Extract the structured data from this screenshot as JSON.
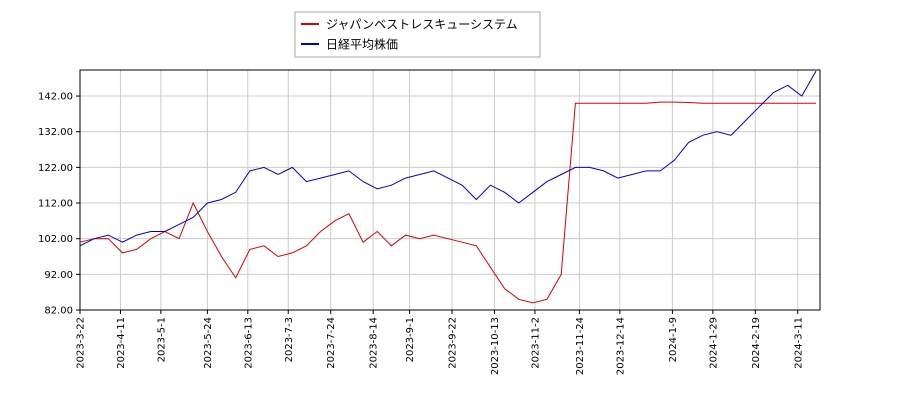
{
  "chart_data": {
    "type": "line",
    "x": [
      "2023-3-22",
      "2023-3-29",
      "2023-4-5",
      "2023-4-12",
      "2023-4-19",
      "2023-4-26",
      "2023-5-3",
      "2023-5-10",
      "2023-5-17",
      "2023-5-24",
      "2023-5-31",
      "2023-6-7",
      "2023-6-14",
      "2023-6-21",
      "2023-6-28",
      "2023-7-5",
      "2023-7-12",
      "2023-7-19",
      "2023-7-26",
      "2023-8-2",
      "2023-8-9",
      "2023-8-16",
      "2023-8-23",
      "2023-8-30",
      "2023-9-6",
      "2023-9-13",
      "2023-9-20",
      "2023-9-27",
      "2023-10-4",
      "2023-10-11",
      "2023-10-18",
      "2023-10-25",
      "2023-11-1",
      "2023-11-8",
      "2023-11-15",
      "2023-11-22",
      "2023-11-29",
      "2023-12-6",
      "2023-12-13",
      "2023-12-20",
      "2023-12-27",
      "2024-1-3",
      "2024-1-10",
      "2024-1-17",
      "2024-1-24",
      "2024-1-31",
      "2024-2-7",
      "2024-2-14",
      "2024-2-21",
      "2024-2-28",
      "2024-3-6",
      "2024-3-13",
      "2024-3-20"
    ],
    "series": [
      {
        "name": "ジャパンベストレスキューシステム",
        "color": "#dd0000",
        "values": [
          101,
          102,
          102,
          98,
          99,
          102,
          104,
          102,
          112,
          104,
          97,
          91,
          99,
          100,
          97,
          98,
          100,
          104,
          107,
          109,
          101,
          104,
          100,
          103,
          102,
          103,
          102,
          101,
          100,
          94,
          88,
          85,
          84,
          85,
          92,
          140,
          140,
          140,
          140,
          140,
          140,
          140.3,
          140.3,
          140.2,
          140,
          140,
          140,
          140,
          140,
          140,
          140,
          140,
          140
        ]
      },
      {
        "name": "日経平均株価",
        "color": "#0000cc",
        "values": [
          100,
          102,
          103,
          101,
          103,
          104,
          104,
          106,
          108,
          112,
          113,
          115,
          121,
          122,
          120,
          122,
          118,
          119,
          120,
          121,
          118,
          116,
          117,
          119,
          120,
          121,
          119,
          117,
          113,
          117,
          115,
          112,
          115,
          118,
          120,
          122,
          122,
          121,
          119,
          120,
          121,
          121,
          124,
          129,
          131,
          132,
          131,
          135,
          139,
          143,
          145,
          142,
          149
        ]
      }
    ],
    "xlim": [
      "2023-3-22",
      "2024-3-22"
    ],
    "xticks": [
      "2023-3-22",
      "2023-4-11",
      "2023-5-1",
      "2023-5-24",
      "2023-6-13",
      "2023-7-3",
      "2023-7-24",
      "2023-8-14",
      "2023-9-1",
      "2023-9-22",
      "2023-10-13",
      "2023-11-2",
      "2023-11-24",
      "2023-12-14",
      "2024-1-9",
      "2024-1-29",
      "2024-2-19",
      "2024-3-11"
    ],
    "ylim": [
      82,
      149.3
    ],
    "yticks": [
      {
        "value": 82,
        "label": "82.00"
      },
      {
        "value": 92,
        "label": "92.00"
      },
      {
        "value": 102,
        "label": "102.00"
      },
      {
        "value": 112,
        "label": "112.00"
      },
      {
        "value": 122,
        "label": "122.00"
      },
      {
        "value": 132,
        "label": "132.00"
      },
      {
        "value": 142,
        "label": "142.00"
      }
    ],
    "grid": true
  }
}
